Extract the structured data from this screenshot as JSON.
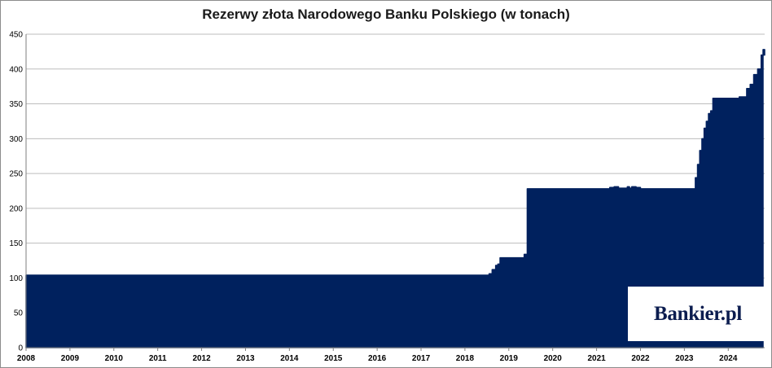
{
  "chart_data": {
    "type": "area",
    "title": "Rezerwy złota Narodowego Banku Polskiego (w tonach)",
    "xlabel": "",
    "ylabel": "",
    "ylim": [
      0,
      450
    ],
    "yticks": [
      0,
      50,
      100,
      150,
      200,
      250,
      300,
      350,
      400,
      450
    ],
    "xlim": [
      2008.0,
      2024.83
    ],
    "xtick_labels": [
      "2008",
      "2009",
      "2010",
      "2011",
      "2012",
      "2013",
      "2014",
      "2015",
      "2016",
      "2017",
      "2018",
      "2019",
      "2020",
      "2021",
      "2022",
      "2023",
      "2024"
    ],
    "grid": "horizontal",
    "legend": "none",
    "color": "#00215e",
    "series": [
      {
        "x": [
          2008.0,
          2018.5,
          2018.55,
          2018.62,
          2018.7,
          2018.75,
          2018.8,
          2018.9,
          2019.0,
          2019.15,
          2019.3,
          2019.35,
          2019.4,
          2019.42,
          2019.5,
          2020.0,
          2020.5,
          2021.0,
          2021.2,
          2021.3,
          2021.4,
          2021.5,
          2021.6,
          2021.7,
          2021.75,
          2021.8,
          2021.9,
          2022.0,
          2022.5,
          2023.0,
          2023.2,
          2023.25,
          2023.3,
          2023.35,
          2023.4,
          2023.45,
          2023.5,
          2023.55,
          2023.6,
          2023.65,
          2023.7,
          2023.75,
          2023.8,
          2023.9,
          2024.0,
          2024.1,
          2024.17,
          2024.25,
          2024.33,
          2024.42,
          2024.5,
          2024.58,
          2024.67,
          2024.75,
          2024.83
        ],
        "y": [
          104,
          104,
          106,
          112,
          118,
          120,
          129,
          129,
          129,
          129,
          129,
          134,
          134,
          228,
          228,
          228,
          228,
          228,
          228,
          230,
          231,
          229,
          229,
          231,
          229,
          231,
          230,
          228,
          228,
          228,
          228,
          244,
          263,
          283,
          300,
          315,
          325,
          336,
          340,
          358,
          358,
          358,
          358,
          358,
          358,
          358,
          358,
          360,
          360,
          372,
          378,
          392,
          400,
          420,
          428
        ]
      }
    ]
  },
  "logo": {
    "brand": "Bankier",
    "suffix": ".pl"
  }
}
